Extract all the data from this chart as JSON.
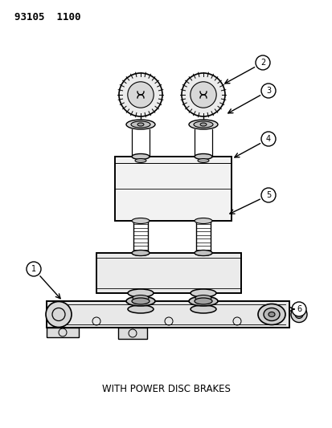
{
  "title_code": "93105  1100",
  "caption": "WITH POWER DISC BRAKES",
  "background_color": "#ffffff",
  "line_color": "#000000",
  "callout_labels": [
    "1",
    "2",
    "3",
    "4",
    "5",
    "6"
  ],
  "fig_width": 4.14,
  "fig_height": 5.33,
  "dpi": 100
}
